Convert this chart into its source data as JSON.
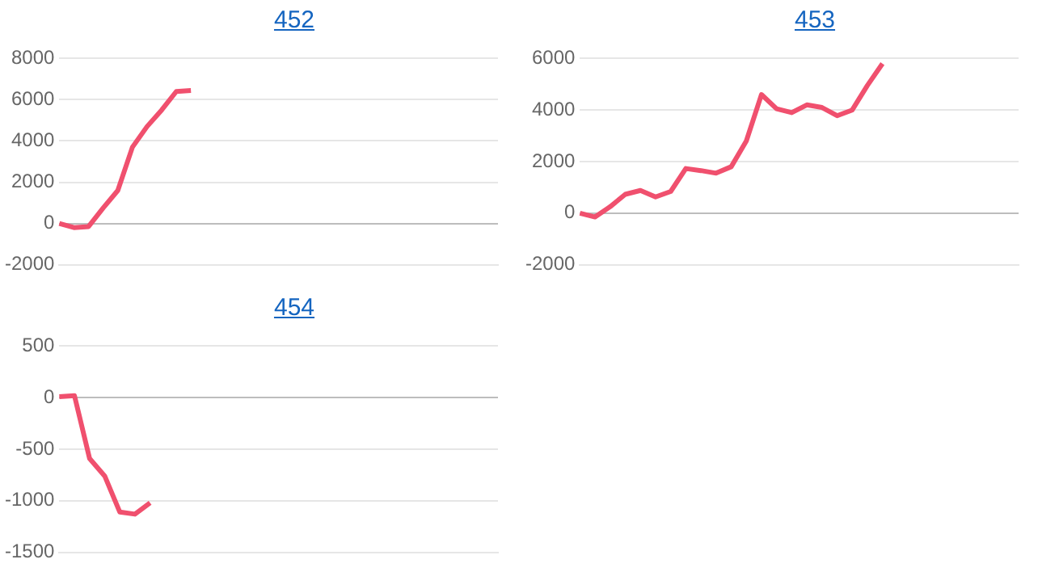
{
  "chart_data": [
    {
      "type": "line",
      "title": "452",
      "categories": [
        null,
        null,
        null,
        null,
        null,
        null,
        null,
        null,
        null,
        null,
        null,
        null,
        null,
        null,
        null,
        null,
        null,
        null,
        null,
        null,
        null,
        null,
        null,
        null,
        null,
        null,
        null,
        null,
        null,
        null,
        null
      ],
      "series": [
        {
          "color": "#f0506e",
          "values": [
            0,
            -200,
            -150,
            750,
            1600,
            3700,
            4700,
            5500,
            6400,
            6450,
            null,
            null,
            null,
            null,
            null,
            null,
            null,
            null,
            null,
            null,
            null,
            null,
            null,
            null,
            null,
            null,
            null,
            null,
            null,
            null,
            null
          ]
        }
      ],
      "ylim": [
        -2000,
        8000
      ],
      "yticks": [
        -2000,
        0,
        2000,
        4000,
        6000,
        8000
      ],
      "grid": "y",
      "tick_labels": "y",
      "marker": "none"
    },
    {
      "type": "line",
      "title": "453",
      "categories": [
        null,
        null,
        null,
        null,
        null,
        null,
        null,
        null,
        null,
        null,
        null,
        null,
        null,
        null,
        null,
        null,
        null,
        null,
        null,
        null,
        null,
        null,
        null,
        null,
        null,
        null,
        null,
        null,
        null,
        null
      ],
      "series": [
        {
          "color": "#f0506e",
          "values": [
            0,
            -150,
            250,
            730,
            880,
            630,
            840,
            1730,
            1650,
            1550,
            1800,
            2800,
            4600,
            4050,
            3900,
            4200,
            4100,
            3780,
            4000,
            4950,
            5800,
            null,
            null,
            null,
            null,
            null,
            null,
            null,
            null,
            null
          ]
        }
      ],
      "ylim": [
        -2000,
        6000
      ],
      "yticks": [
        -2000,
        0,
        2000,
        4000,
        6000
      ],
      "grid": "y",
      "tick_labels": "y",
      "marker": "none"
    },
    {
      "type": "line",
      "title": "454",
      "categories": [
        null,
        null,
        null,
        null,
        null,
        null,
        null,
        null,
        null,
        null,
        null,
        null,
        null,
        null,
        null,
        null,
        null,
        null,
        null,
        null,
        null,
        null,
        null,
        null,
        null,
        null,
        null,
        null,
        null,
        null
      ],
      "series": [
        {
          "color": "#f0506e",
          "values": [
            10,
            20,
            -590,
            -760,
            -1110,
            -1130,
            -1020,
            null,
            null,
            null,
            null,
            null,
            null,
            null,
            null,
            null,
            null,
            null,
            null,
            null,
            null,
            null,
            null,
            null,
            null,
            null,
            null,
            null,
            null,
            null
          ]
        }
      ],
      "ylim": [
        -1500,
        500
      ],
      "yticks": [
        -1500,
        -1000,
        -500,
        0,
        500
      ],
      "grid": "y",
      "tick_labels": "y",
      "marker": "none"
    }
  ]
}
